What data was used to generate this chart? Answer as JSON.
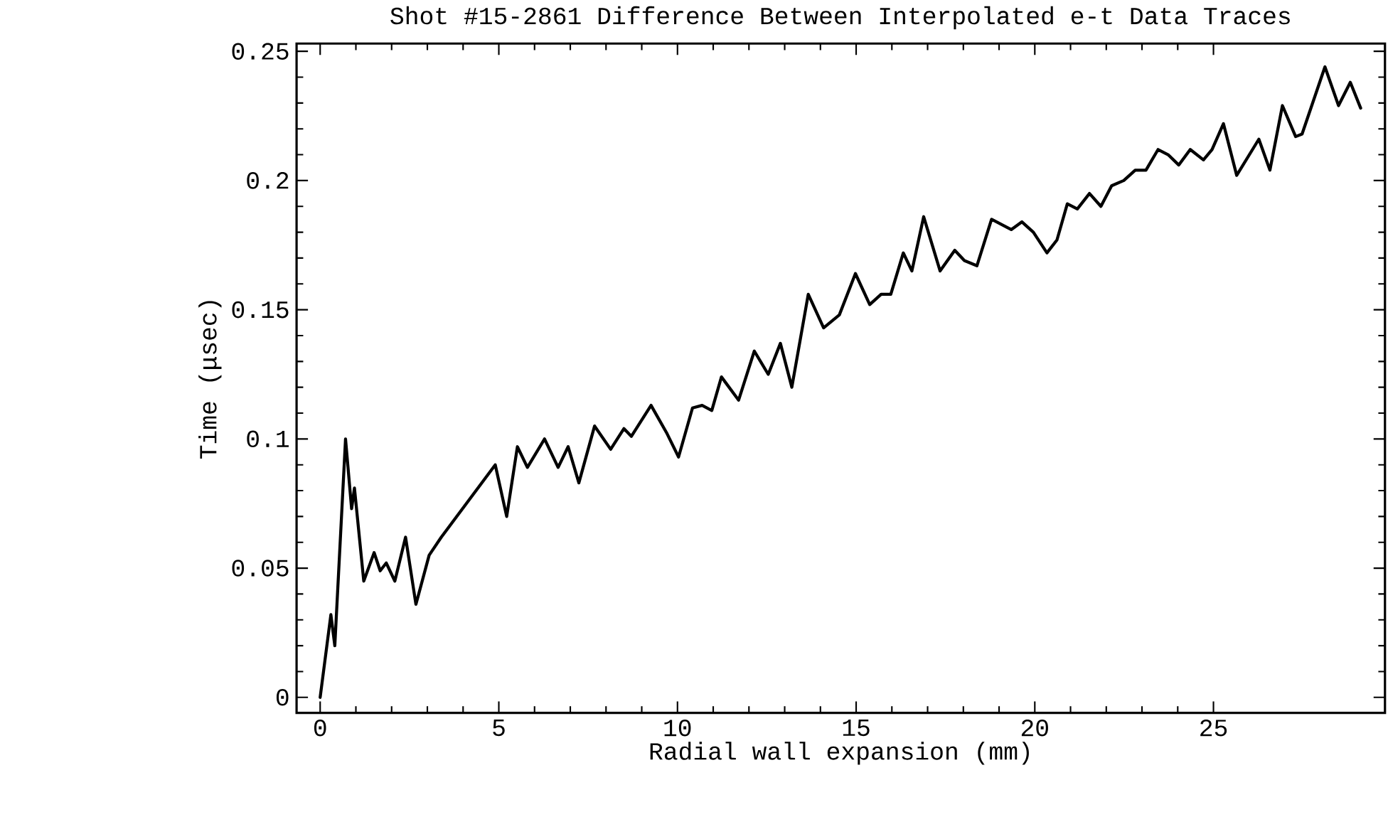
{
  "chart_data": {
    "type": "line",
    "title": "Shot #15-2861 Difference Between Interpolated e-t Data Traces",
    "xlabel": "Radial wall expansion (mm)",
    "ylabel": "Time (μsec)",
    "xlim": [
      -0.66,
      29.8
    ],
    "ylim": [
      -0.006,
      0.253
    ],
    "xticks": [
      0,
      5,
      10,
      15,
      20,
      25
    ],
    "yticks": [
      0,
      0.05,
      0.1,
      0.15,
      0.2,
      0.25
    ],
    "line_style": "solid",
    "series": [
      {
        "color": "#000000",
        "x": [
          0,
          0.3,
          0.41,
          0.71,
          0.88,
          0.96,
          1.22,
          1.51,
          1.68,
          1.85,
          2.09,
          2.39,
          2.68,
          3.05,
          3.39,
          4.9,
          5.22,
          5.52,
          5.8,
          6.28,
          6.66,
          6.94,
          7.24,
          7.68,
          8.13,
          8.5,
          8.71,
          9.26,
          9.71,
          10.03,
          10.42,
          10.69,
          10.96,
          11.23,
          11.71,
          12.15,
          12.54,
          12.88,
          13.2,
          13.66,
          14.09,
          14.53,
          14.98,
          15.38,
          15.7,
          15.97,
          16.32,
          16.56,
          16.89,
          17.35,
          17.76,
          18.03,
          18.38,
          18.79,
          19.34,
          19.64,
          19.96,
          20.34,
          20.62,
          20.91,
          21.19,
          21.53,
          21.85,
          22.15,
          22.49,
          22.81,
          23.11,
          23.45,
          23.73,
          24.03,
          24.35,
          24.72,
          24.96,
          25.28,
          25.65,
          26.27,
          26.58,
          26.93,
          27.3,
          27.48,
          28.12,
          28.5,
          28.83,
          29.12
        ],
        "values": [
          0,
          0.032,
          0.02,
          0.1,
          0.073,
          0.081,
          0.045,
          0.056,
          0.049,
          0.052,
          0.045,
          0.062,
          0.036,
          0.055,
          0.062,
          0.09,
          0.07,
          0.097,
          0.089,
          0.1,
          0.089,
          0.097,
          0.083,
          0.105,
          0.096,
          0.104,
          0.101,
          0.113,
          0.102,
          0.093,
          0.112,
          0.113,
          0.111,
          0.124,
          0.115,
          0.134,
          0.125,
          0.137,
          0.12,
          0.156,
          0.143,
          0.148,
          0.164,
          0.152,
          0.156,
          0.156,
          0.172,
          0.165,
          0.186,
          0.165,
          0.173,
          0.169,
          0.167,
          0.185,
          0.181,
          0.184,
          0.18,
          0.172,
          0.177,
          0.191,
          0.189,
          0.195,
          0.19,
          0.198,
          0.2,
          0.204,
          0.204,
          0.212,
          0.21,
          0.206,
          0.212,
          0.208,
          0.212,
          0.222,
          0.202,
          0.216,
          0.204,
          0.229,
          0.217,
          0.218,
          0.244,
          0.229,
          0.238,
          0.228
        ]
      }
    ]
  }
}
